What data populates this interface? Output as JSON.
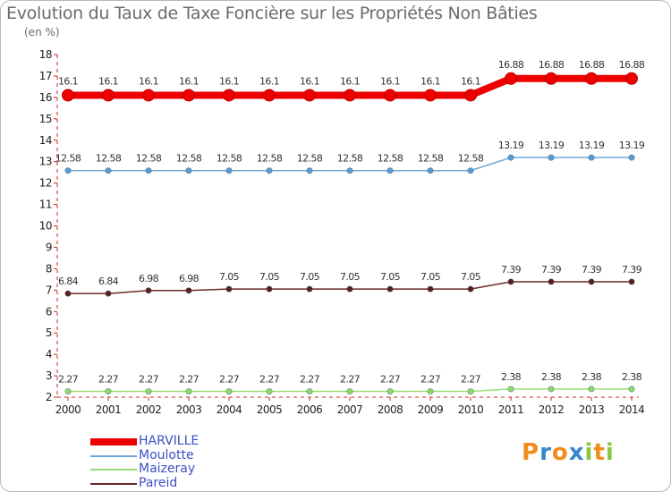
{
  "title": "Evolution du Taux de Taxe Foncière sur les Propriétés Non Bâties",
  "unit_label": "(en %)",
  "logo": {
    "letters": [
      {
        "ch": "P",
        "color": "#f28c1c"
      },
      {
        "ch": "r",
        "color": "#3a86c8"
      },
      {
        "ch": "o",
        "color": "#f28c1c"
      },
      {
        "ch": "x",
        "color": "#3a86c8"
      },
      {
        "ch": "i",
        "color": "#8cc63f"
      },
      {
        "ch": "t",
        "color": "#f28c1c"
      },
      {
        "ch": "i",
        "color": "#8cc63f"
      }
    ]
  },
  "chart_data": {
    "type": "line",
    "title": "Evolution du Taux de Taxe Foncière sur les Propriétés Non Bâties",
    "ylabel": "(en %)",
    "xlabel": "",
    "ylim": [
      2,
      18
    ],
    "yticks": [
      2,
      3,
      4,
      5,
      6,
      7,
      8,
      9,
      10,
      11,
      12,
      13,
      14,
      15,
      16,
      17,
      18
    ],
    "grid": false,
    "legend_position": "bottom-left",
    "categories": [
      "2000",
      "2001",
      "2002",
      "2003",
      "2004",
      "2005",
      "2006",
      "2007",
      "2008",
      "2009",
      "2010",
      "2011",
      "2012",
      "2013",
      "2014"
    ],
    "series": [
      {
        "name": "HARVILLE",
        "color": "#ee0000",
        "emphasis": true,
        "values": [
          16.1,
          16.1,
          16.1,
          16.1,
          16.1,
          16.1,
          16.1,
          16.1,
          16.1,
          16.1,
          16.1,
          16.88,
          16.88,
          16.88,
          16.88
        ],
        "labels": [
          "16.1",
          "16.1",
          "16.1",
          "16.1",
          "16.1",
          "16.1",
          "16.1",
          "16.1",
          "16.1",
          "16.1",
          "16.1",
          "16.88",
          "16.88",
          "16.88",
          "16.88"
        ]
      },
      {
        "name": "Moulotte",
        "color": "#6ea8d8",
        "marker_color": "#5a9bd5",
        "emphasis": false,
        "values": [
          12.58,
          12.58,
          12.58,
          12.58,
          12.58,
          12.58,
          12.58,
          12.58,
          12.58,
          12.58,
          12.58,
          13.19,
          13.19,
          13.19,
          13.19
        ],
        "labels": [
          "12.58",
          "12.58",
          "12.58",
          "12.58",
          "12.58",
          "12.58",
          "12.58",
          "12.58",
          "12.58",
          "12.58",
          "12.58",
          "13.19",
          "13.19",
          "13.19",
          "13.19"
        ]
      },
      {
        "name": "Maizeray",
        "color": "#99dd77",
        "marker_color": "#8fd86a",
        "emphasis": false,
        "values": [
          2.27,
          2.27,
          2.27,
          2.27,
          2.27,
          2.27,
          2.27,
          2.27,
          2.27,
          2.27,
          2.27,
          2.38,
          2.38,
          2.38,
          2.38
        ],
        "labels": [
          "2.27",
          "2.27",
          "2.27",
          "2.27",
          "2.27",
          "2.27",
          "2.27",
          "2.27",
          "2.27",
          "2.27",
          "2.27",
          "2.38",
          "2.38",
          "2.38",
          "2.38"
        ]
      },
      {
        "name": "Pareid",
        "color": "#6b2a2a",
        "marker_color": "#5a2020",
        "emphasis": false,
        "values": [
          6.84,
          6.84,
          6.98,
          6.98,
          7.05,
          7.05,
          7.05,
          7.05,
          7.05,
          7.05,
          7.05,
          7.39,
          7.39,
          7.39,
          7.39
        ],
        "labels": [
          "6.84",
          "6.84",
          "6.98",
          "6.98",
          "7.05",
          "7.05",
          "7.05",
          "7.05",
          "7.05",
          "7.05",
          "7.05",
          "7.39",
          "7.39",
          "7.39",
          "7.39"
        ]
      }
    ]
  }
}
